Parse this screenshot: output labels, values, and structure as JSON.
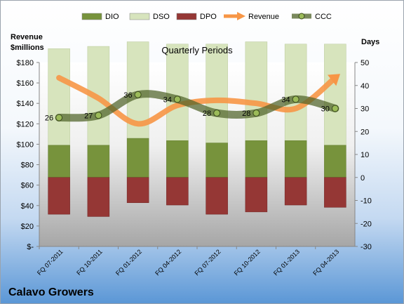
{
  "company": "Calavo Growers",
  "chart_data": {
    "type": "bar",
    "title": "Quarterly Periods",
    "left_axis_label": [
      "Revenue",
      "$millions"
    ],
    "right_axis_label": "Days",
    "categories": [
      "FQ 07-2011",
      "FQ 10-2011",
      "FQ 01-2012",
      "FQ 04-2012",
      "FQ 07-2012",
      "FQ 10-2012",
      "FQ 01-2013",
      "FQ 04-2013"
    ],
    "left_axis": {
      "ylim": [
        0,
        180
      ],
      "ticks": [
        0,
        20,
        40,
        60,
        80,
        100,
        120,
        140,
        160,
        180
      ],
      "tick_labels": [
        "$-",
        "$20",
        "$40",
        "$60",
        "$80",
        "$100",
        "$120",
        "$140",
        "$160",
        "$180"
      ]
    },
    "right_axis": {
      "ylim": [
        -30,
        50
      ],
      "ticks": [
        -30,
        -20,
        -10,
        0,
        10,
        20,
        30,
        40,
        50
      ],
      "tick_labels": [
        "-30",
        "-20",
        "-10",
        "0",
        "10",
        "20",
        "30",
        "40",
        "50"
      ]
    },
    "legend": {
      "position": "top",
      "entries": [
        {
          "name": "DIO",
          "kind": "bar",
          "color": "#77933c"
        },
        {
          "name": "DSO",
          "kind": "bar",
          "color": "#d7e4bd"
        },
        {
          "name": "DPO",
          "kind": "bar",
          "color": "#953735"
        },
        {
          "name": "Revenue",
          "kind": "line",
          "color": "#f79646"
        },
        {
          "name": "CCC",
          "kind": "line",
          "color": "#4f6228"
        }
      ]
    },
    "series": [
      {
        "name": "DIO",
        "axis": "right",
        "base": 0,
        "values": [
          14,
          14,
          17,
          16,
          15,
          16,
          16,
          14
        ],
        "color": "#77933c"
      },
      {
        "name": "DSO",
        "axis": "right",
        "values": [
          42,
          43,
          42,
          42,
          43,
          43,
          42,
          44
        ],
        "color": "#d7e4bd"
      },
      {
        "name": "DPO",
        "axis": "right",
        "base": 0,
        "values": [
          -16,
          -17,
          -11,
          -12,
          -16,
          -15,
          -12,
          -13
        ],
        "color": "#953735"
      },
      {
        "name": "Revenue",
        "axis": "left",
        "values": [
          165,
          145,
          120,
          138,
          143,
          140,
          135,
          165
        ],
        "color": "#f79646"
      },
      {
        "name": "CCC",
        "axis": "right",
        "values": [
          26,
          27,
          36,
          34,
          28,
          28,
          34,
          30
        ],
        "color": "#4f6228"
      }
    ],
    "data_labels": [
      "26",
      "27",
      "36",
      "34",
      "28",
      "28",
      "34",
      "30"
    ],
    "grid": false
  }
}
